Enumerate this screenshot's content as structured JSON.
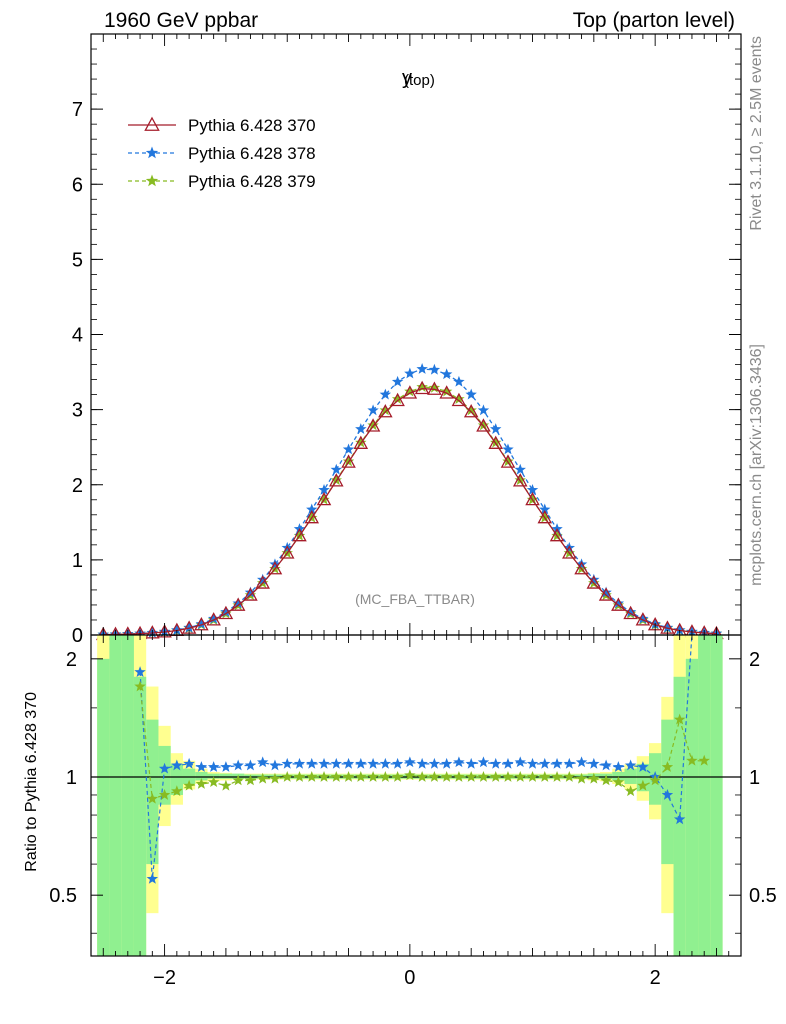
{
  "header": {
    "left_label": "1960 GeV ppbar",
    "right_label": "Top (parton level)"
  },
  "side_labels": {
    "rivet": "Rivet 3.1.10, ≥ 2.5M events",
    "source": "mcplots.cern.ch [arXiv:1306.3436]"
  },
  "chart_data": [
    {
      "type": "line",
      "panel": "main",
      "title": "y",
      "title_suffix": "(top)",
      "watermark": "(MC_FBA_TTBAR)",
      "xlim": [
        -2.6,
        2.7
      ],
      "ylim": [
        0,
        8
      ],
      "yticks": [
        0,
        1,
        2,
        3,
        4,
        5,
        6,
        7
      ],
      "legend_position": "top-left",
      "x": [
        -2.5,
        -2.4,
        -2.3,
        -2.2,
        -2.1,
        -2.0,
        -1.9,
        -1.8,
        -1.7,
        -1.6,
        -1.5,
        -1.4,
        -1.3,
        -1.2,
        -1.1,
        -1.0,
        -0.9,
        -0.8,
        -0.7,
        -0.6,
        -0.5,
        -0.4,
        -0.3,
        -0.2,
        -0.1,
        0.0,
        0.1,
        0.2,
        0.3,
        0.4,
        0.5,
        0.6,
        0.7,
        0.8,
        0.9,
        1.0,
        1.1,
        1.2,
        1.3,
        1.4,
        1.5,
        1.6,
        1.7,
        1.8,
        1.9,
        2.0,
        2.1,
        2.2,
        2.3,
        2.4,
        2.5
      ],
      "series": [
        {
          "name": "Pythia 6.428 370",
          "color": "#a51c2a",
          "marker": "open-triangle",
          "values": [
            0.005,
            0.008,
            0.012,
            0.018,
            0.027,
            0.04,
            0.06,
            0.09,
            0.135,
            0.2,
            0.285,
            0.395,
            0.53,
            0.69,
            0.88,
            1.09,
            1.32,
            1.56,
            1.8,
            2.05,
            2.3,
            2.55,
            2.78,
            2.97,
            3.12,
            3.22,
            3.28,
            3.27,
            3.22,
            3.12,
            2.97,
            2.78,
            2.55,
            2.3,
            2.05,
            1.8,
            1.56,
            1.32,
            1.09,
            0.88,
            0.69,
            0.53,
            0.395,
            0.285,
            0.2,
            0.135,
            0.09,
            0.06,
            0.04,
            0.027,
            0.018
          ]
        },
        {
          "name": "Pythia 6.428 378",
          "color": "#2277dd",
          "marker": "star",
          "values": [
            0.006,
            0.009,
            0.013,
            0.019,
            0.029,
            0.043,
            0.064,
            0.096,
            0.145,
            0.215,
            0.305,
            0.42,
            0.565,
            0.735,
            0.94,
            1.16,
            1.41,
            1.67,
            1.93,
            2.2,
            2.47,
            2.74,
            2.99,
            3.2,
            3.37,
            3.48,
            3.54,
            3.53,
            3.47,
            3.37,
            3.2,
            2.99,
            2.74,
            2.47,
            2.2,
            1.93,
            1.67,
            1.41,
            1.16,
            0.94,
            0.735,
            0.565,
            0.42,
            0.305,
            0.215,
            0.145,
            0.096,
            0.064,
            0.043,
            0.029,
            0.019
          ]
        },
        {
          "name": "Pythia 6.428 379",
          "color": "#88bb22",
          "marker": "star",
          "values": [
            0.005,
            0.008,
            0.012,
            0.018,
            0.027,
            0.04,
            0.06,
            0.09,
            0.135,
            0.2,
            0.285,
            0.395,
            0.53,
            0.69,
            0.88,
            1.09,
            1.32,
            1.56,
            1.8,
            2.06,
            2.31,
            2.56,
            2.79,
            2.99,
            3.14,
            3.24,
            3.3,
            3.29,
            3.24,
            3.14,
            2.99,
            2.79,
            2.56,
            2.31,
            2.06,
            1.8,
            1.56,
            1.32,
            1.09,
            0.88,
            0.69,
            0.53,
            0.395,
            0.285,
            0.2,
            0.135,
            0.09,
            0.06,
            0.04,
            0.027,
            0.018
          ]
        }
      ]
    },
    {
      "type": "line",
      "panel": "ratio",
      "ylabel": "Ratio to Pythia 6.428 370",
      "xlim": [
        -2.6,
        2.7
      ],
      "ylim": [
        0.35,
        2.3
      ],
      "yticks": [
        0.5,
        1,
        2
      ],
      "xticks": [
        -2,
        0,
        2
      ],
      "reference_line": 1,
      "x": [
        -2.5,
        -2.4,
        -2.3,
        -2.2,
        -2.1,
        -2.0,
        -1.9,
        -1.8,
        -1.7,
        -1.6,
        -1.5,
        -1.4,
        -1.3,
        -1.2,
        -1.1,
        -1.0,
        -0.9,
        -0.8,
        -0.7,
        -0.6,
        -0.5,
        -0.4,
        -0.3,
        -0.2,
        -0.1,
        0.0,
        0.1,
        0.2,
        0.3,
        0.4,
        0.5,
        0.6,
        0.7,
        0.8,
        0.9,
        1.0,
        1.1,
        1.2,
        1.3,
        1.4,
        1.5,
        1.6,
        1.7,
        1.8,
        1.9,
        2.0,
        2.1,
        2.2,
        2.3,
        2.4,
        2.5
      ],
      "band_green": [
        [
          0.35,
          2.0
        ],
        [
          0.35,
          2.3
        ],
        [
          0.35,
          2.3
        ],
        [
          0.35,
          1.8
        ],
        [
          0.6,
          1.4
        ],
        [
          0.85,
          1.2
        ],
        [
          0.9,
          1.08
        ],
        [
          0.96,
          1.05
        ],
        [
          0.98,
          1.03
        ],
        [
          0.99,
          1.02
        ],
        [
          0.99,
          1.02
        ],
        [
          0.99,
          1.02
        ],
        [
          0.99,
          1.015
        ],
        [
          0.99,
          1.015
        ],
        [
          0.99,
          1.015
        ],
        [
          0.99,
          1.015
        ],
        [
          0.99,
          1.015
        ],
        [
          0.99,
          1.015
        ],
        [
          0.99,
          1.015
        ],
        [
          0.99,
          1.015
        ],
        [
          0.99,
          1.015
        ],
        [
          0.99,
          1.015
        ],
        [
          0.99,
          1.015
        ],
        [
          0.99,
          1.015
        ],
        [
          0.99,
          1.015
        ],
        [
          0.99,
          1.015
        ],
        [
          0.99,
          1.015
        ],
        [
          0.99,
          1.015
        ],
        [
          0.99,
          1.015
        ],
        [
          0.99,
          1.015
        ],
        [
          0.99,
          1.015
        ],
        [
          0.99,
          1.015
        ],
        [
          0.99,
          1.015
        ],
        [
          0.99,
          1.015
        ],
        [
          0.99,
          1.015
        ],
        [
          0.99,
          1.015
        ],
        [
          0.99,
          1.015
        ],
        [
          0.99,
          1.015
        ],
        [
          0.99,
          1.015
        ],
        [
          0.99,
          1.015
        ],
        [
          0.99,
          1.02
        ],
        [
          0.99,
          1.02
        ],
        [
          0.98,
          1.03
        ],
        [
          0.96,
          1.05
        ],
        [
          0.92,
          1.08
        ],
        [
          0.85,
          1.15
        ],
        [
          0.6,
          1.4
        ],
        [
          0.35,
          1.8
        ],
        [
          0.35,
          2.0
        ],
        [
          0.35,
          2.3
        ],
        [
          0.35,
          2.3
        ]
      ],
      "band_yellow": [
        [
          0.35,
          2.3
        ],
        [
          0.35,
          2.3
        ],
        [
          0.35,
          2.3
        ],
        [
          0.35,
          2.3
        ],
        [
          0.45,
          1.7
        ],
        [
          0.75,
          1.35
        ],
        [
          0.85,
          1.15
        ],
        [
          0.93,
          1.1
        ],
        [
          0.96,
          1.05
        ],
        [
          0.975,
          1.03
        ],
        [
          0.98,
          1.025
        ],
        [
          0.985,
          1.02
        ],
        [
          0.985,
          1.02
        ],
        [
          0.985,
          1.02
        ],
        [
          0.985,
          1.02
        ],
        [
          0.985,
          1.02
        ],
        [
          0.985,
          1.02
        ],
        [
          0.985,
          1.02
        ],
        [
          0.985,
          1.02
        ],
        [
          0.985,
          1.02
        ],
        [
          0.985,
          1.02
        ],
        [
          0.985,
          1.02
        ],
        [
          0.985,
          1.02
        ],
        [
          0.985,
          1.02
        ],
        [
          0.985,
          1.02
        ],
        [
          0.985,
          1.02
        ],
        [
          0.985,
          1.02
        ],
        [
          0.985,
          1.02
        ],
        [
          0.985,
          1.02
        ],
        [
          0.985,
          1.02
        ],
        [
          0.985,
          1.02
        ],
        [
          0.985,
          1.02
        ],
        [
          0.985,
          1.02
        ],
        [
          0.985,
          1.02
        ],
        [
          0.985,
          1.02
        ],
        [
          0.985,
          1.02
        ],
        [
          0.985,
          1.02
        ],
        [
          0.985,
          1.02
        ],
        [
          0.985,
          1.02
        ],
        [
          0.985,
          1.02
        ],
        [
          0.98,
          1.025
        ],
        [
          0.975,
          1.03
        ],
        [
          0.96,
          1.05
        ],
        [
          0.93,
          1.08
        ],
        [
          0.87,
          1.13
        ],
        [
          0.78,
          1.22
        ],
        [
          0.45,
          1.6
        ],
        [
          0.35,
          2.3
        ],
        [
          0.35,
          2.3
        ],
        [
          0.35,
          2.3
        ],
        [
          0.35,
          2.3
        ]
      ],
      "series": [
        {
          "name": "Pythia 6.428 378",
          "color": "#2277dd",
          "values": [
            null,
            null,
            null,
            1.85,
            0.55,
            1.05,
            1.07,
            1.08,
            1.06,
            1.06,
            1.06,
            1.07,
            1.07,
            1.09,
            1.07,
            1.08,
            1.08,
            1.08,
            1.08,
            1.08,
            1.08,
            1.08,
            1.08,
            1.08,
            1.08,
            1.09,
            1.08,
            1.08,
            1.08,
            1.09,
            1.08,
            1.09,
            1.08,
            1.08,
            1.09,
            1.08,
            1.08,
            1.08,
            1.08,
            1.09,
            1.08,
            1.07,
            1.06,
            1.07,
            1.06,
            1.0,
            0.9,
            0.78,
            2.3,
            null,
            null
          ]
        },
        {
          "name": "Pythia 6.428 379",
          "color": "#88bb22",
          "values": [
            null,
            null,
            null,
            1.7,
            0.88,
            0.9,
            0.92,
            0.95,
            0.96,
            0.97,
            0.95,
            0.98,
            0.98,
            0.99,
            0.99,
            1.0,
            1.0,
            1.0,
            1.0,
            1.0,
            1.0,
            1.0,
            1.0,
            1.0,
            1.0,
            1.01,
            1.0,
            1.0,
            1.0,
            1.0,
            1.0,
            1.0,
            1.0,
            1.0,
            1.0,
            1.0,
            1.0,
            1.0,
            1.0,
            0.99,
            0.99,
            0.98,
            0.97,
            0.92,
            0.95,
            0.98,
            1.06,
            1.4,
            1.1,
            1.1,
            null
          ]
        }
      ]
    }
  ]
}
